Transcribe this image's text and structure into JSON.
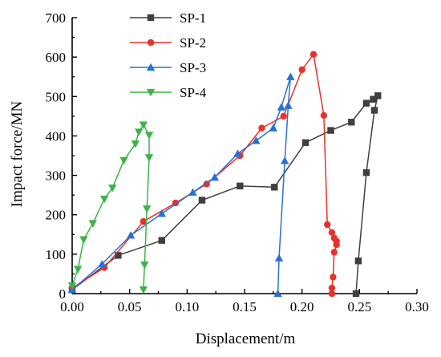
{
  "chart_data": {
    "type": "line",
    "title": "",
    "xlabel": "Displacement/m",
    "ylabel": "Impact force/MN",
    "xlim": [
      0,
      0.3
    ],
    "ylim": [
      0,
      700
    ],
    "xticks": [
      "0.00",
      "0.05",
      "0.10",
      "0.15",
      "0.20",
      "0.25",
      "0.30"
    ],
    "yticks": [
      "0",
      "100",
      "200",
      "300",
      "400",
      "500",
      "600",
      "700"
    ],
    "grid": false,
    "legend_position": "top-left",
    "series": [
      {
        "name": "SP-1",
        "color": "#3f3f3f",
        "marker": "square",
        "points": [
          [
            0.0,
            10
          ],
          [
            0.04,
            97
          ],
          [
            0.078,
            135
          ],
          [
            0.113,
            237
          ],
          [
            0.146,
            273
          ],
          [
            0.176,
            270
          ],
          [
            0.203,
            383
          ],
          [
            0.225,
            414
          ],
          [
            0.243,
            435
          ],
          [
            0.256,
            483
          ],
          [
            0.262,
            493
          ],
          [
            0.266,
            502
          ],
          [
            0.263,
            465
          ],
          [
            0.256,
            307
          ],
          [
            0.249,
            83
          ],
          [
            0.247,
            0
          ]
        ]
      },
      {
        "name": "SP-2",
        "color": "#e8312a",
        "marker": "circle",
        "points": [
          [
            0.0,
            14
          ],
          [
            0.028,
            66
          ],
          [
            0.062,
            183
          ],
          [
            0.09,
            230
          ],
          [
            0.117,
            278
          ],
          [
            0.146,
            350
          ],
          [
            0.165,
            420
          ],
          [
            0.184,
            450
          ],
          [
            0.2,
            568
          ],
          [
            0.21,
            607
          ],
          [
            0.219,
            452
          ],
          [
            0.222,
            175
          ],
          [
            0.226,
            155
          ],
          [
            0.228,
            141
          ],
          [
            0.23,
            133
          ],
          [
            0.23,
            124
          ],
          [
            0.228,
            105
          ],
          [
            0.227,
            42
          ],
          [
            0.226,
            14
          ],
          [
            0.226,
            0
          ]
        ]
      },
      {
        "name": "SP-3",
        "color": "#2a6fd6",
        "marker": "triangle-up",
        "points": [
          [
            0.0,
            10
          ],
          [
            0.026,
            75
          ],
          [
            0.051,
            148
          ],
          [
            0.078,
            203
          ],
          [
            0.105,
            257
          ],
          [
            0.124,
            295
          ],
          [
            0.144,
            355
          ],
          [
            0.16,
            388
          ],
          [
            0.175,
            420
          ],
          [
            0.182,
            473
          ],
          [
            0.19,
            550
          ],
          [
            0.188,
            477
          ],
          [
            0.185,
            337
          ],
          [
            0.18,
            90
          ],
          [
            0.179,
            0
          ]
        ]
      },
      {
        "name": "SP-4",
        "color": "#3cb34a",
        "marker": "triangle-down",
        "points": [
          [
            0.0,
            20
          ],
          [
            0.005,
            62
          ],
          [
            0.01,
            137
          ],
          [
            0.018,
            178
          ],
          [
            0.028,
            240
          ],
          [
            0.035,
            268
          ],
          [
            0.045,
            338
          ],
          [
            0.055,
            380
          ],
          [
            0.058,
            410
          ],
          [
            0.062,
            428
          ],
          [
            0.067,
            402
          ],
          [
            0.067,
            345
          ],
          [
            0.065,
            215
          ],
          [
            0.063,
            73
          ],
          [
            0.062,
            10
          ]
        ]
      }
    ]
  }
}
